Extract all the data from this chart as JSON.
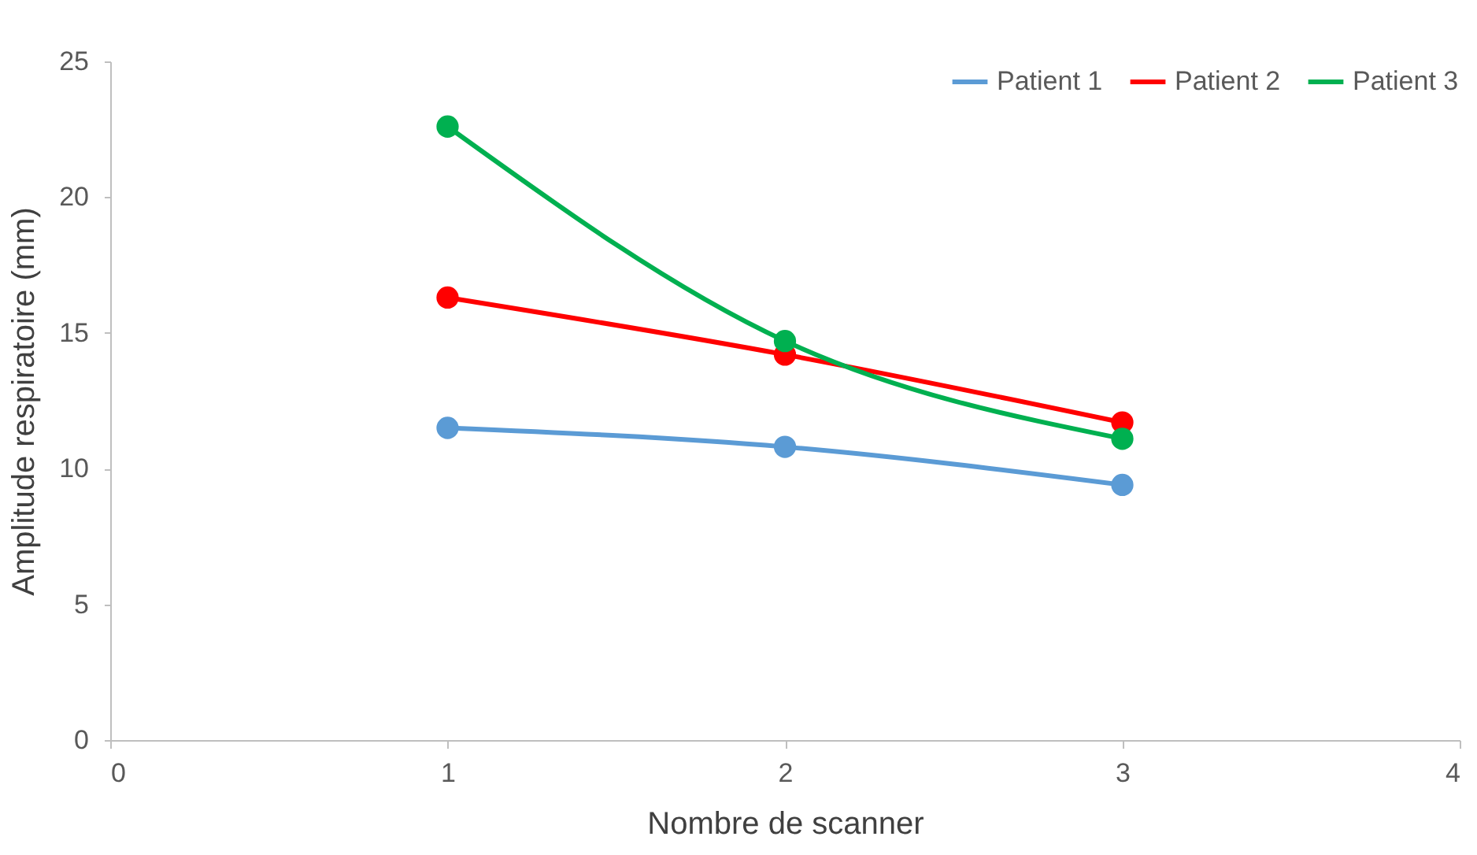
{
  "chart_data": {
    "type": "line",
    "xlabel": "Nombre de scanner",
    "ylabel": "Amplitude respiratoire (mm)",
    "x": [
      1,
      2,
      3
    ],
    "xlim": [
      0,
      4
    ],
    "xticks": [
      0,
      1,
      2,
      3,
      4
    ],
    "ylim": [
      0,
      25
    ],
    "yticks": [
      0,
      5,
      10,
      15,
      20,
      25
    ],
    "series": [
      {
        "name": "Patient 1",
        "color": "#5b9bd5",
        "values": [
          11.5,
          10.8,
          9.4
        ]
      },
      {
        "name": "Patient 2",
        "color": "#ff0000",
        "values": [
          16.3,
          14.2,
          11.7
        ]
      },
      {
        "name": "Patient 3",
        "color": "#00b050",
        "values": [
          22.6,
          14.7,
          11.1
        ]
      }
    ],
    "marker": "circle",
    "line_style": "solid",
    "grid": false,
    "legend": "top right"
  }
}
